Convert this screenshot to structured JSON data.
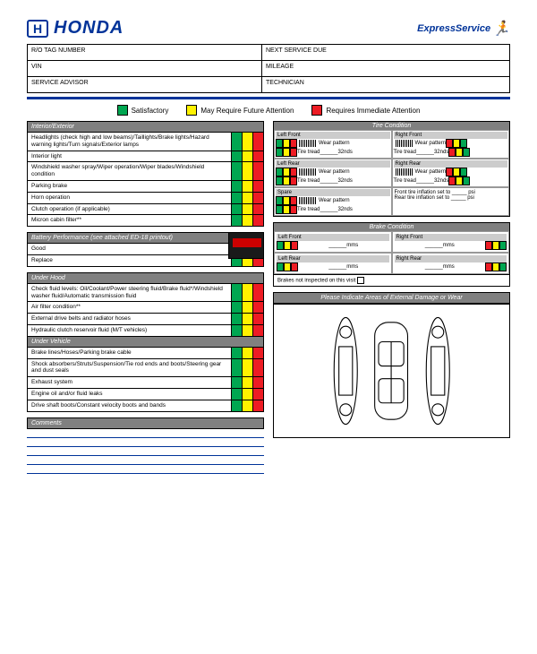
{
  "brand": "HONDA",
  "express": "ExpressService",
  "info_fields": [
    [
      "R/O TAG NUMBER",
      "NEXT SERVICE DUE"
    ],
    [
      "VIN",
      "MILEAGE"
    ],
    [
      "SERVICE ADVISOR",
      "TECHNICIAN"
    ]
  ],
  "legend": {
    "satisfactory": "Satisfactory",
    "future": "May Require Future Attention",
    "immediate": "Requires Immediate Attention"
  },
  "colors": {
    "green": "#00a651",
    "yellow": "#fff200",
    "red": "#ed1c24",
    "grey": "#808080",
    "blue": "#003399"
  },
  "sections": {
    "interior": {
      "title": "Interior/Exterior",
      "items": [
        "Headlights (check high and low beams)/Taillights/Brake lights/Hazard warning lights/Turn signals/Exterior lamps",
        "Interior light",
        "Windshield washer spray/Wiper operation/Wiper blades/Windshield condition",
        "Parking brake",
        "Horn operation",
        "Clutch operation (if applicable)",
        "Micron cabin filter**"
      ]
    },
    "battery": {
      "title": "Battery Performance (see attached ED-18 printout)",
      "items": [
        "Good",
        "Replace"
      ]
    },
    "underhood": {
      "title": "Under Hood",
      "items": [
        "Check fluid levels: Oil/Coolant/Power steering fluid/Brake fluid*/Windshield washer fluid/Automatic transmission fluid",
        "Air filter condition**",
        "External drive belts and radiator hoses",
        "Hydraulic clutch reservoir fluid (M/T vehicles)"
      ]
    },
    "undervehicle": {
      "title": "Under Vehicle",
      "items": [
        "Brake lines/Hoses/Parking brake cable",
        "Shock absorbers/Struts/Suspension/Tie rod ends and boots/Steering gear and dust seals",
        "Exhaust system",
        "Engine oil and/or fluid leaks",
        "Drive shaft boots/Constant velocity boots and bands"
      ]
    },
    "comments": {
      "title": "Comments"
    }
  },
  "tire": {
    "title": "Tire Condition",
    "positions": [
      "Left Front",
      "Right Front",
      "Left Rear",
      "Right Rear",
      "Spare"
    ],
    "wear": "Wear pattern",
    "tread": "Tire tread______32nds",
    "inflation_front": "Front tire inflation set to _____ psi",
    "inflation_rear": "Rear tire inflation set to _____ psi"
  },
  "brake": {
    "title": "Brake Condition",
    "positions": [
      "Left Front",
      "Right Front",
      "Left Rear",
      "Right Rear"
    ],
    "mms": "______mms",
    "note": "Brakes not inspected on this visit"
  },
  "damage": {
    "title": "Please Indicate Areas of External Damage or Wear"
  }
}
